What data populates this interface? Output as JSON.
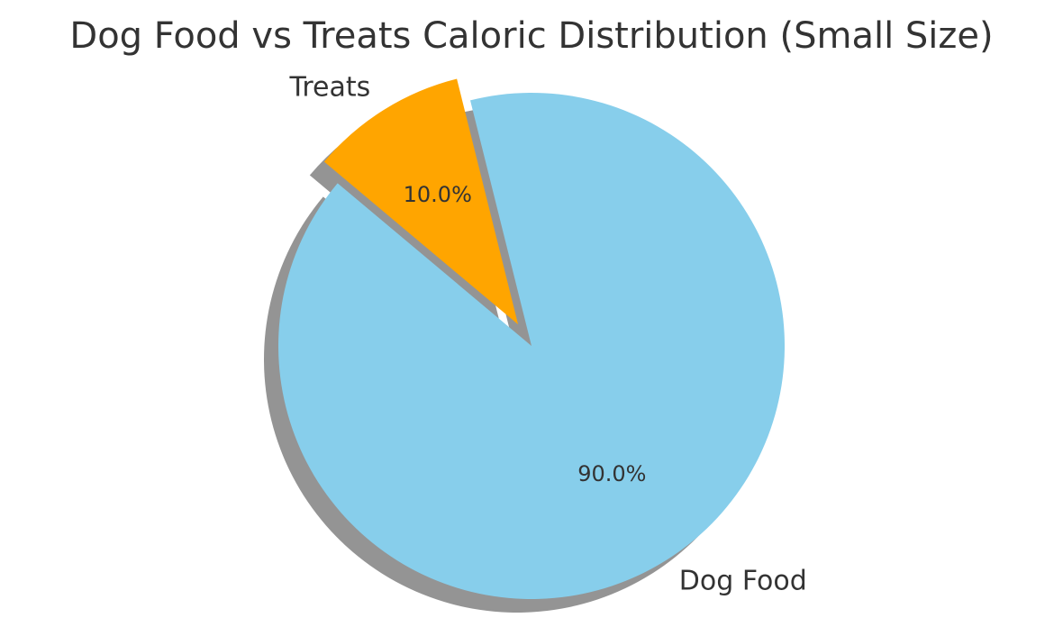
{
  "chart_data": {
    "type": "pie",
    "title": "Dog Food vs Treats Caloric Distribution (Small Size)",
    "slices": [
      {
        "label": "Dog Food",
        "value": 90.0,
        "pct_label": "90.0%",
        "color": "#87CEEB",
        "explode": 0
      },
      {
        "label": "Treats",
        "value": 10.0,
        "pct_label": "10.0%",
        "color": "#FFA500",
        "explode": 0.1
      }
    ],
    "start_angle": 140,
    "shadow": true,
    "legend": "none"
  }
}
